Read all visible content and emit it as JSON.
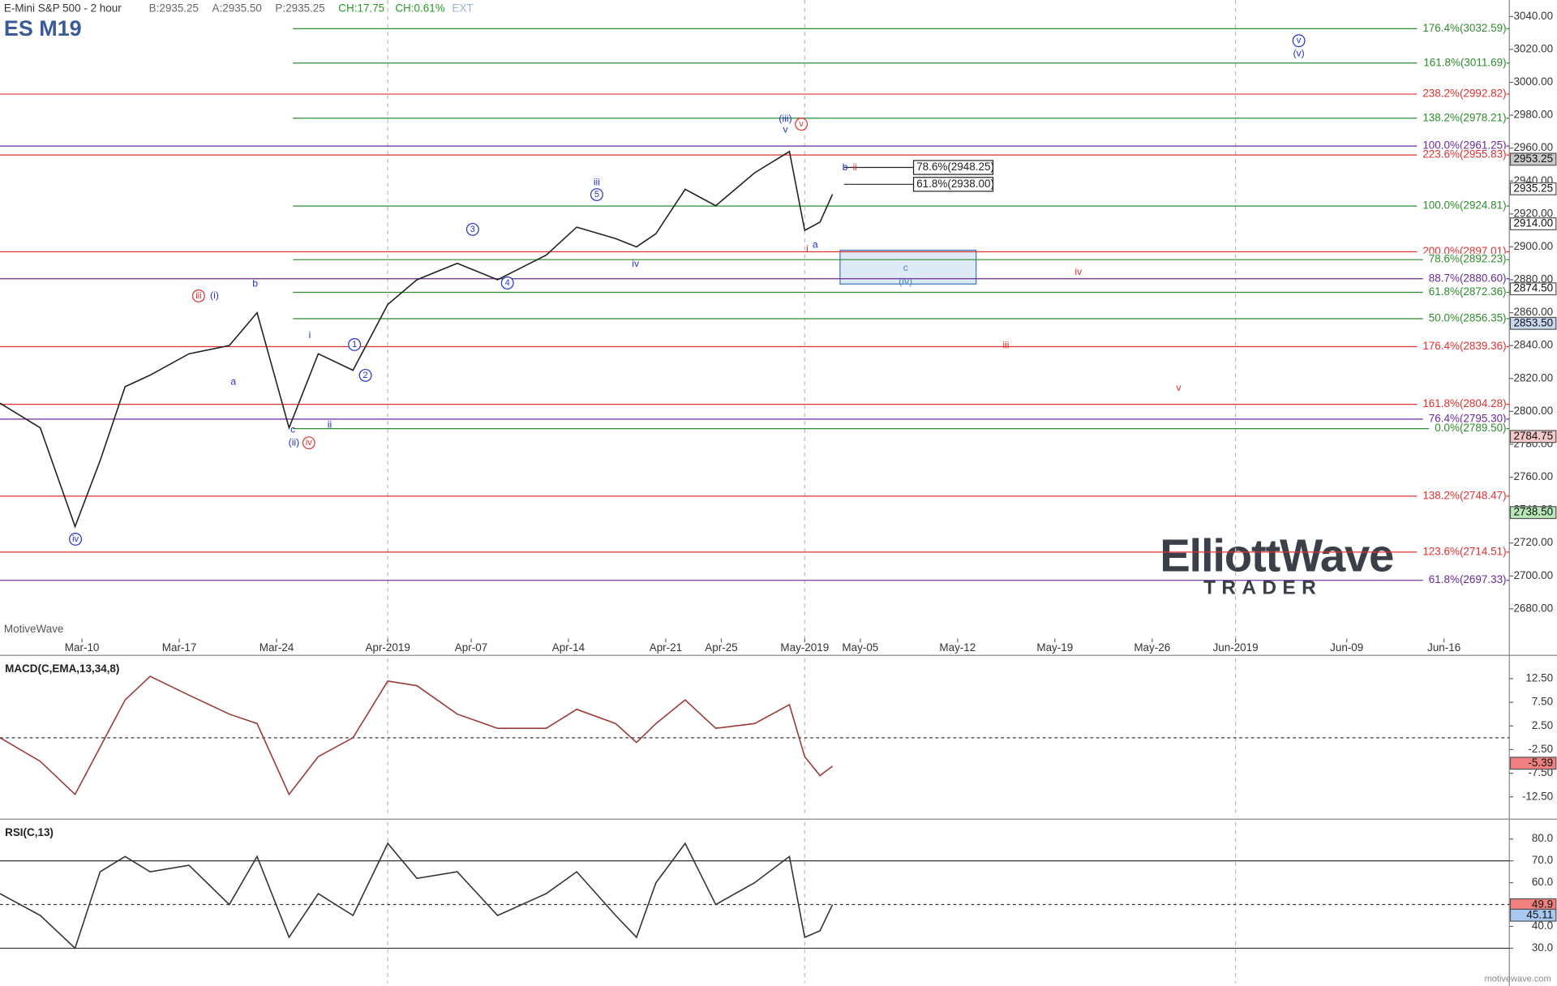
{
  "header": {
    "title": "E-Mini S&P 500 - 2 hour",
    "symbol": "ES M19",
    "quotes": [
      {
        "text": "B:2935.25",
        "color": "#666"
      },
      {
        "text": "A:2935.50",
        "color": "#666"
      },
      {
        "text": "P:2935.25",
        "color": "#666"
      },
      {
        "text": "CH:17.75",
        "color": "#2a9a2a"
      },
      {
        "text": "CH:0.61%",
        "color": "#2a9a2a"
      },
      {
        "text": "EXT",
        "color": "#9ab0d8"
      }
    ],
    "watermark": "MotiveWave",
    "logo": "ElliottWave",
    "logo_sub": "TRADER",
    "footer": "motivewave.com"
  },
  "chart_data": [
    {
      "type": "line",
      "color": "#222",
      "x": [
        -5.9,
        -3,
        -0.5,
        1.3,
        3.1,
        4.9,
        7.7,
        10.6,
        12.6,
        14.9,
        17,
        19.5,
        22,
        24.1,
        27,
        29.9,
        33.4,
        35.6,
        38.4,
        39.9,
        41.3,
        43.4,
        45.6,
        48.4,
        50.9,
        52,
        53.1,
        54
      ],
      "values": [
        2805,
        2790,
        2730,
        2770,
        2815,
        2822,
        2835,
        2840,
        2860,
        2790,
        2835,
        2825,
        2865,
        2880,
        2890,
        2880,
        2895,
        2912,
        2905,
        2900,
        2908,
        2935,
        2925,
        2945,
        2958,
        2910,
        2915,
        2932
      ],
      "xlim": [
        -5.9,
        102.7
      ],
      "ylim": [
        2662,
        3050
      ],
      "xticks": [
        {
          "value": 0,
          "label": "Mar-10"
        },
        {
          "value": 7,
          "label": "Mar-17"
        },
        {
          "value": 14,
          "label": "Mar-24"
        },
        {
          "value": 22,
          "label": "Apr-2019"
        },
        {
          "value": 28,
          "label": "Apr-07"
        },
        {
          "value": 35,
          "label": "Apr-14"
        },
        {
          "value": 42,
          "label": "Apr-21"
        },
        {
          "value": 46,
          "label": "Apr-25"
        },
        {
          "value": 52,
          "label": "May-2019"
        },
        {
          "value": 56,
          "label": "May-05"
        },
        {
          "value": 63,
          "label": "May-12"
        },
        {
          "value": 70,
          "label": "May-19"
        },
        {
          "value": 77,
          "label": "May-26"
        },
        {
          "value": 83,
          "label": "Jun-2019"
        },
        {
          "value": 91,
          "label": "Jun-09"
        },
        {
          "value": 98,
          "label": "Jun-16"
        }
      ],
      "yticks": [
        {
          "value": 2680,
          "label": "2680.00"
        },
        {
          "value": 2700,
          "label": "2700.00"
        },
        {
          "value": 2720,
          "label": "2720.00"
        },
        {
          "value": 2740,
          "label": "2740.00"
        },
        {
          "value": 2760,
          "label": "2760.00"
        },
        {
          "value": 2780,
          "label": "2780.00"
        },
        {
          "value": 2800,
          "label": "2800.00"
        },
        {
          "value": 2820,
          "label": "2820.00"
        },
        {
          "value": 2840,
          "label": "2840.00"
        },
        {
          "value": 2860,
          "label": "2860.00"
        },
        {
          "value": 2880,
          "label": "2880.00"
        },
        {
          "value": 2900,
          "label": "2900.00"
        },
        {
          "value": 2920,
          "label": "2920.00"
        },
        {
          "value": 2940,
          "label": "2940.00"
        },
        {
          "value": 2960,
          "label": "2960.00"
        },
        {
          "value": 2980,
          "label": "2980.00"
        },
        {
          "value": 3000,
          "label": "3000.00"
        },
        {
          "value": 3020,
          "label": "3020.00"
        },
        {
          "value": 3040,
          "label": "3040.00"
        }
      ],
      "fib_levels": [
        {
          "label": "176.4%(3032.59)",
          "value": 3032.59,
          "color": "#2e8b2e"
        },
        {
          "label": "161.8%(3011.69)",
          "value": 3011.69,
          "color": "#2e8b2e"
        },
        {
          "label": "238.2%(2992.82)",
          "value": 2992.82,
          "color": "#e03030"
        },
        {
          "label": "138.2%(2978.21)",
          "value": 2978.21,
          "color": "#2e8b2e"
        },
        {
          "label": "100.0%(2961.25)",
          "value": 2961.25,
          "color": "#6a2a9a"
        },
        {
          "label": "223.6%(2955.83)",
          "value": 2955.83,
          "color": "#e03030"
        },
        {
          "label": "100.0%(2924.81)",
          "value": 2924.81,
          "color": "#2e8b2e"
        },
        {
          "label": "200.0%(2897.01)",
          "value": 2897.01,
          "color": "#e03030"
        },
        {
          "label": "78.6%(2892.23)",
          "value": 2892.23,
          "color": "#2e8b2e"
        },
        {
          "label": "88.7%(2880.60)",
          "value": 2880.6,
          "color": "#6a2a9a"
        },
        {
          "label": "61.8%(2872.36)",
          "value": 2872.36,
          "color": "#2e8b2e"
        },
        {
          "label": "50.0%(2856.35)",
          "value": 2856.35,
          "color": "#2e8b2e"
        },
        {
          "label": "176.4%(2839.36)",
          "value": 2839.36,
          "color": "#e03030"
        },
        {
          "label": "161.8%(2804.28)",
          "value": 2804.28,
          "color": "#e03030"
        },
        {
          "label": "76.4%(2795.30)",
          "value": 2795.3,
          "color": "#6a2a9a"
        },
        {
          "label": "0.0%(2789.50)",
          "value": 2789.5,
          "color": "#2e8b2e"
        },
        {
          "label": "138.2%(2748.47)",
          "value": 2748.47,
          "color": "#e03030"
        },
        {
          "label": "123.6%(2714.51)",
          "value": 2714.51,
          "color": "#e03030"
        },
        {
          "label": "61.8%(2697.33)",
          "value": 2697.33,
          "color": "#6a2a9a"
        }
      ],
      "retracements": [
        {
          "label": "78.6%(2948.25)",
          "value": 2948.25
        },
        {
          "label": "61.8%(2938.00)",
          "value": 2938
        }
      ],
      "price_tags": [
        {
          "label": "2953.25",
          "value": 2953.25,
          "color": "#c8c8c8"
        },
        {
          "label": "2935.25",
          "value": 2935.25,
          "color": "#ffffff"
        },
        {
          "label": "2914.00",
          "value": 2914,
          "color": "#ffffff"
        },
        {
          "label": "2874.50",
          "value": 2874.5,
          "color": "#ffffff"
        },
        {
          "label": "2853.50",
          "value": 2853.5,
          "color": "#c8d8f0"
        },
        {
          "label": "2784.75",
          "value": 2784.75,
          "color": "#f4c8c8"
        },
        {
          "label": "2738.50",
          "value": 2738.5,
          "color": "#b8e8b8"
        }
      ],
      "annotations": [
        {
          "text": "iii",
          "color": "#e03030",
          "circled": true
        },
        {
          "text": "(i)",
          "color": "#2233cc",
          "circled": false
        },
        {
          "text": "b",
          "color": "#2233cc",
          "circled": false
        },
        {
          "text": "a",
          "color": "#2233cc",
          "circled": false
        },
        {
          "text": "c",
          "color": "#2233cc",
          "circled": false
        },
        {
          "text": "(ii)",
          "color": "#2233cc",
          "circled": false
        },
        {
          "text": "iv",
          "color": "#e03030",
          "circled": true
        },
        {
          "text": "i",
          "color": "#2233cc",
          "circled": false
        },
        {
          "text": "ii",
          "color": "#2233cc",
          "circled": false
        },
        {
          "text": "1",
          "color": "#2233cc",
          "circled": true
        },
        {
          "text": "2",
          "color": "#2233cc",
          "circled": true
        },
        {
          "text": "3",
          "color": "#2233cc",
          "circled": true
        },
        {
          "text": "4",
          "color": "#2233cc",
          "circled": true
        },
        {
          "text": "iii",
          "color": "#2233cc",
          "circled": false
        },
        {
          "text": "5",
          "color": "#2233cc",
          "circled": true
        },
        {
          "text": "iv",
          "color": "#2233cc",
          "circled": false
        },
        {
          "text": "(iii)",
          "color": "#2233cc",
          "circled": false
        },
        {
          "text": "v",
          "color": "#2233cc",
          "circled": false
        },
        {
          "text": "v",
          "color": "#e03030",
          "circled": true
        },
        {
          "text": "b",
          "color": "#2233cc",
          "circled": false
        },
        {
          "text": "ii",
          "color": "#e03030",
          "circled": false
        },
        {
          "text": "i",
          "color": "#e03030",
          "circled": false
        },
        {
          "text": "a",
          "color": "#2233cc",
          "circled": false
        },
        {
          "text": "c",
          "color": "#4a88c8",
          "circled": false
        },
        {
          "text": "(iv)",
          "color": "#4a88c8",
          "circled": false
        },
        {
          "text": "iv",
          "color": "#e03030",
          "circled": false
        },
        {
          "text": "iii",
          "color": "#e03030",
          "circled": false
        },
        {
          "text": "v",
          "color": "#e03030",
          "circled": false
        },
        {
          "text": "v",
          "color": "#2233cc",
          "circled": true
        },
        {
          "text": "(v)",
          "color": "#2233cc",
          "circled": false
        },
        {
          "text": "iv",
          "color": "#2233cc",
          "circled": true
        }
      ]
    },
    {
      "type": "line",
      "title": "MACD(C,EMA,13,34,8)",
      "color": "#9a3a3a",
      "x": [
        -5.9,
        -3,
        -0.5,
        1.3,
        3.1,
        4.9,
        7.7,
        10.6,
        12.6,
        14.9,
        17,
        19.5,
        22,
        24.1,
        27,
        29.9,
        33.4,
        35.6,
        38.4,
        39.9,
        41.3,
        43.4,
        45.6,
        48.4,
        50.9,
        52,
        53.1,
        54
      ],
      "values": [
        0,
        -5,
        -12,
        -2,
        8,
        13,
        9,
        5,
        3,
        -12,
        -4,
        0,
        12,
        11,
        5,
        2,
        2,
        6,
        3,
        -1,
        3,
        8,
        2,
        3,
        7,
        -4,
        -8,
        -6
      ],
      "ylim": [
        -16.8,
        16.8
      ],
      "yticks": [
        {
          "value": 12.5,
          "label": "12.50"
        },
        {
          "value": 7.5,
          "label": "7.50"
        },
        {
          "value": 2.5,
          "label": "2.50"
        },
        {
          "value": -2.5,
          "label": "-2.50"
        },
        {
          "value": -7.5,
          "label": "-7.50"
        },
        {
          "value": -12.5,
          "label": "-12.50"
        }
      ],
      "levels": [
        0
      ],
      "price_tags": [
        {
          "label": "-5.39",
          "value": -5.39,
          "color": "#f08080"
        }
      ]
    },
    {
      "type": "line",
      "title": "RSI(C,13)",
      "color": "#333",
      "x": [
        -5.9,
        -3,
        -0.5,
        1.3,
        3.1,
        4.9,
        7.7,
        10.6,
        12.6,
        14.9,
        17,
        19.5,
        22,
        24.1,
        27,
        29.9,
        33.4,
        35.6,
        38.4,
        39.9,
        41.3,
        43.4,
        45.6,
        48.4,
        50.9,
        52,
        53.1,
        54
      ],
      "values": [
        55,
        45,
        30,
        65,
        72,
        65,
        68,
        50,
        72,
        35,
        55,
        45,
        78,
        62,
        65,
        45,
        55,
        65,
        45,
        35,
        60,
        78,
        50,
        60,
        72,
        35,
        38,
        50
      ],
      "ylim": [
        14.1,
        87.7
      ],
      "yticks": [
        {
          "value": 80,
          "label": "80.0"
        },
        {
          "value": 70,
          "label": "70.0"
        },
        {
          "value": 60,
          "label": "60.0"
        },
        {
          "value": 40,
          "label": "40.0"
        },
        {
          "value": 30,
          "label": "30.0"
        }
      ],
      "levels": [
        70,
        50,
        30
      ],
      "price_tags": [
        {
          "label": "49.9",
          "value": 49.9,
          "color": "#f08080"
        },
        {
          "label": "45.11",
          "value": 45.11,
          "color": "#a8c8f0"
        }
      ]
    }
  ]
}
